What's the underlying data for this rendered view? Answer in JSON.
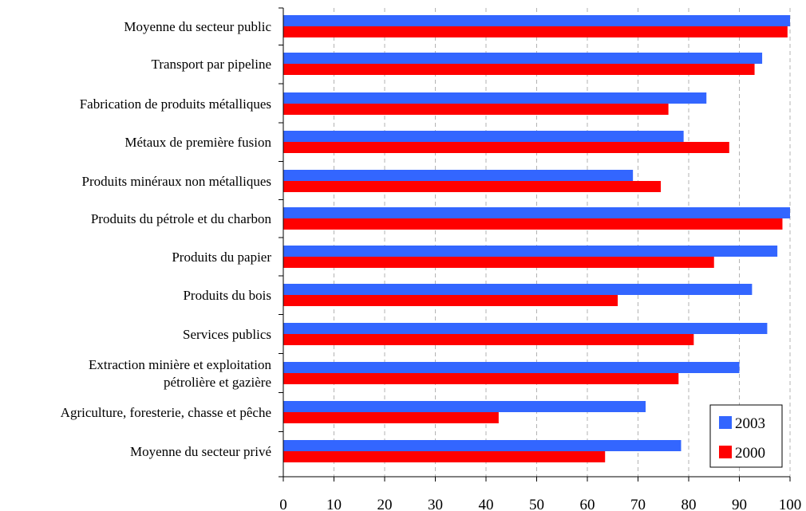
{
  "chart_data": {
    "type": "bar",
    "orientation": "horizontal",
    "categories": [
      "Moyenne du secteur public",
      "Transport par pipeline",
      "Fabrication de produits métalliques",
      "Métaux de première fusion",
      "Produits minéraux non métalliques",
      "Produits du pétrole et du charbon",
      "Produits du papier",
      "Produits du bois",
      "Services publics",
      "Extraction minière et exploitation pétrolière et gazière",
      "Agriculture, foresterie, chasse et pêche",
      "Moyenne du secteur privé"
    ],
    "category_lines": [
      [
        "Moyenne du secteur public"
      ],
      [
        "Transport par pipeline"
      ],
      [
        "Fabrication de produits métalliques"
      ],
      [
        "Métaux de première fusion"
      ],
      [
        "Produits minéraux non métalliques"
      ],
      [
        "Produits du pétrole et du charbon"
      ],
      [
        "Produits du papier"
      ],
      [
        "Produits du bois"
      ],
      [
        "Services publics"
      ],
      [
        "Extraction minière et exploitation",
        "pétrolière et gazière"
      ],
      [
        "Agriculture, foresterie, chasse et pêche"
      ],
      [
        "Moyenne du secteur privé"
      ]
    ],
    "series": [
      {
        "name": "2003",
        "color": "#3366ff",
        "values": [
          100,
          94.5,
          83.5,
          79,
          69,
          100,
          97.5,
          92.5,
          95.5,
          90,
          71.5,
          78.5
        ]
      },
      {
        "name": "2000",
        "color": "#ff0000",
        "values": [
          99.5,
          93,
          76,
          88,
          74.5,
          98.5,
          85,
          66,
          81,
          78,
          42.5,
          63.5
        ]
      }
    ],
    "xlim": [
      0,
      100
    ],
    "xticks": [
      "0",
      "10",
      "20",
      "30",
      "40",
      "50",
      "60",
      "70",
      "80",
      "90",
      "100"
    ],
    "grid": "vertical dashed",
    "legend_position": "bottom-right",
    "title": "",
    "xlabel": "",
    "ylabel": ""
  }
}
